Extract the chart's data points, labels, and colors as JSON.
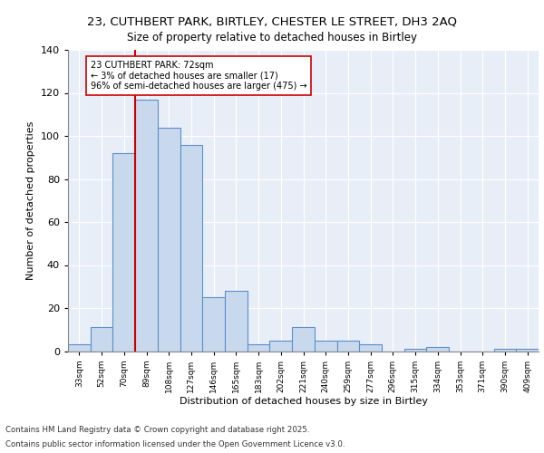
{
  "title_line1": "23, CUTHBERT PARK, BIRTLEY, CHESTER LE STREET, DH3 2AQ",
  "title_line2": "Size of property relative to detached houses in Birtley",
  "xlabel": "Distribution of detached houses by size in Birtley",
  "ylabel": "Number of detached properties",
  "bin_labels": [
    "33sqm",
    "52sqm",
    "70sqm",
    "89sqm",
    "108sqm",
    "127sqm",
    "146sqm",
    "165sqm",
    "183sqm",
    "202sqm",
    "221sqm",
    "240sqm",
    "259sqm",
    "277sqm",
    "296sqm",
    "315sqm",
    "334sqm",
    "353sqm",
    "371sqm",
    "390sqm",
    "409sqm"
  ],
  "bar_heights": [
    3,
    11,
    92,
    117,
    104,
    96,
    25,
    28,
    3,
    5,
    11,
    5,
    5,
    3,
    0,
    1,
    2,
    0,
    0,
    1,
    1
  ],
  "bar_color": "#c9d9ed",
  "bar_edge_color": "#5b8fc9",
  "vline_color": "#cc0000",
  "vline_x_index": 2,
  "annotation_text": "23 CUTHBERT PARK: 72sqm\n← 3% of detached houses are smaller (17)\n96% of semi-detached houses are larger (475) →",
  "annotation_box_color": "#ffffff",
  "annotation_box_edge": "#cc0000",
  "ylim": [
    0,
    140
  ],
  "yticks": [
    0,
    20,
    40,
    60,
    80,
    100,
    120,
    140
  ],
  "background_color": "#e8eef7",
  "grid_color": "#ffffff",
  "footer_line1": "Contains HM Land Registry data © Crown copyright and database right 2025.",
  "footer_line2": "Contains public sector information licensed under the Open Government Licence v3.0."
}
